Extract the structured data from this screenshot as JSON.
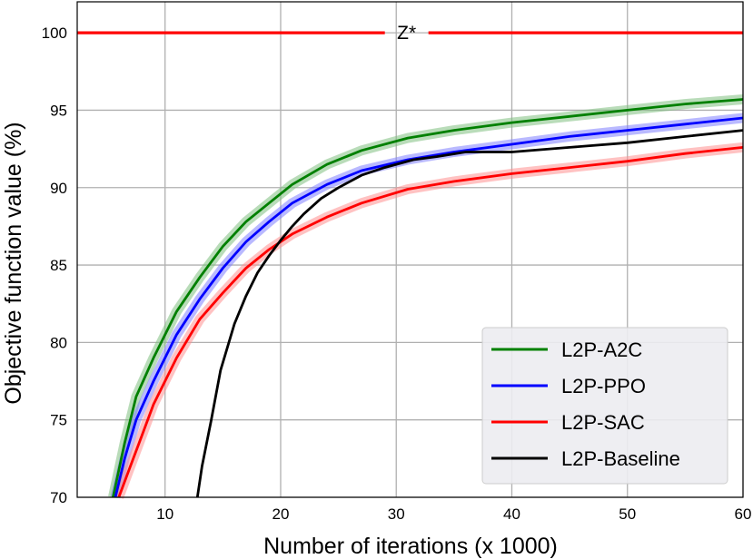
{
  "chart_data": {
    "type": "line",
    "title": "",
    "xlabel": "Number of iterations (x 1000)",
    "ylabel": "Objective function value (%)",
    "xlim": [
      2.4,
      60
    ],
    "ylim": [
      70,
      102
    ],
    "xticks": [
      10,
      20,
      30,
      40,
      50,
      60
    ],
    "yticks": [
      70,
      75,
      80,
      85,
      90,
      95,
      100
    ],
    "grid": true,
    "legend_position": "lower-right",
    "reference_line": {
      "label": "Z*",
      "y": 100,
      "color": "#ff0000"
    },
    "series": [
      {
        "name": "L2P-A2C",
        "color": "#008000",
        "band_color": "#7fc07f",
        "x": [
          5.5,
          6.5,
          7.5,
          9,
          11,
          13,
          15,
          17,
          19,
          21,
          24,
          27,
          31,
          35,
          40,
          45,
          50,
          55,
          60
        ],
        "y": [
          70,
          73.5,
          76.5,
          79,
          82,
          84.2,
          86.2,
          87.8,
          89,
          90.2,
          91.5,
          92.4,
          93.2,
          93.7,
          94.2,
          94.6,
          95,
          95.4,
          95.7
        ]
      },
      {
        "name": "L2P-PPO",
        "color": "#0000ff",
        "band_color": "#8080ff",
        "x": [
          5.7,
          6.5,
          7.5,
          9,
          11,
          13,
          15,
          17,
          19,
          21,
          24,
          27,
          31,
          35,
          40,
          45,
          50,
          55,
          60
        ],
        "y": [
          70,
          72.5,
          75,
          77.5,
          80.5,
          82.8,
          84.8,
          86.5,
          87.8,
          89,
          90.2,
          91.1,
          91.8,
          92.3,
          92.8,
          93.3,
          93.7,
          94.1,
          94.5
        ]
      },
      {
        "name": "L2P-SAC",
        "color": "#ff0000",
        "band_color": "#ff9090",
        "x": [
          6,
          7,
          8,
          9,
          11,
          13,
          15,
          17,
          19,
          21,
          24,
          27,
          31,
          35,
          40,
          45,
          50,
          55,
          60
        ],
        "y": [
          70,
          72,
          74,
          76,
          79,
          81.5,
          83.2,
          84.8,
          86,
          87,
          88.1,
          89,
          89.9,
          90.4,
          90.9,
          91.3,
          91.7,
          92.2,
          92.6
        ]
      },
      {
        "name": "L2P-Baseline",
        "color": "#000000",
        "x": [
          12.8,
          13.2,
          14,
          14.8,
          16,
          17,
          18,
          19,
          20,
          21,
          22,
          23.5,
          25,
          27,
          29,
          31.5,
          33.5,
          36,
          40,
          45,
          50,
          55,
          60
        ],
        "y": [
          70,
          72,
          75,
          78.2,
          81.2,
          83,
          84.5,
          85.6,
          86.6,
          87.5,
          88.3,
          89.3,
          90,
          90.8,
          91.3,
          91.8,
          92,
          92.3,
          92.3,
          92.6,
          92.9,
          93.3,
          93.7
        ]
      }
    ]
  }
}
